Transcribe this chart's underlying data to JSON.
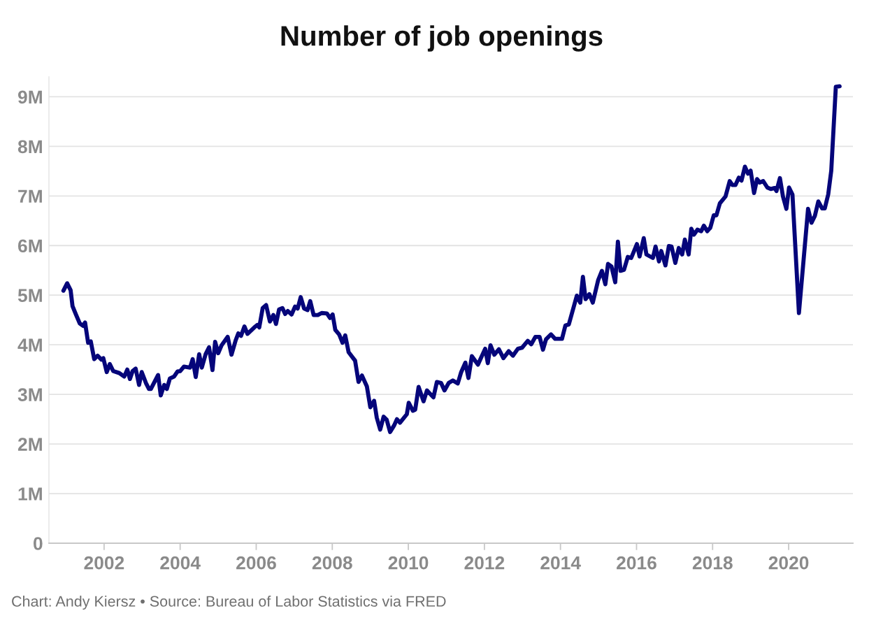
{
  "chart_data": {
    "type": "line",
    "title": "Number of job openings",
    "annotations": [
      "Chart: Andy Kiersz • Source: Bureau of Labor Statistics via FRED"
    ],
    "xlim": [
      2000.55,
      2021.69
    ],
    "xticks": [
      2002,
      2004,
      2006,
      2008,
      2010,
      2012,
      2014,
      2016,
      2018,
      2020
    ],
    "ylim": [
      0,
      9.4
    ],
    "yticks": [
      {
        "value": 0,
        "label": "0"
      },
      {
        "value": 1,
        "label": "1M"
      },
      {
        "value": 2,
        "label": "2M"
      },
      {
        "value": 3,
        "label": "3M"
      },
      {
        "value": 4,
        "label": "4M"
      },
      {
        "value": 5,
        "label": "5M"
      },
      {
        "value": 6,
        "label": "6M"
      },
      {
        "value": 7,
        "label": "7M"
      },
      {
        "value": 8,
        "label": "8M"
      },
      {
        "value": 9,
        "label": "9M"
      }
    ],
    "grid": "y",
    "legend": false,
    "marker": "none",
    "line_style": "solid",
    "series": [
      {
        "color": "#05057a",
        "x": [
          2000.93,
          2001.03,
          2001.12,
          2001.17,
          2001.26,
          2001.36,
          2001.45,
          2001.5,
          2001.58,
          2001.65,
          2001.74,
          2001.83,
          2001.93,
          2001.98,
          2002.07,
          2002.15,
          2002.24,
          2002.4,
          2002.53,
          2002.61,
          2002.68,
          2002.75,
          2002.83,
          2002.92,
          2002.99,
          2003.1,
          2003.18,
          2003.23,
          2003.42,
          2003.49,
          2003.58,
          2003.65,
          2003.73,
          2003.84,
          2003.93,
          2004.0,
          2004.1,
          2004.26,
          2004.33,
          2004.41,
          2004.5,
          2004.57,
          2004.67,
          2004.76,
          2004.85,
          2004.92,
          2005.0,
          2005.09,
          2005.25,
          2005.35,
          2005.46,
          2005.53,
          2005.6,
          2005.69,
          2005.77,
          2005.95,
          2006.03,
          2006.08,
          2006.17,
          2006.26,
          2006.36,
          2006.45,
          2006.52,
          2006.6,
          2006.69,
          2006.76,
          2006.83,
          2006.93,
          2007.02,
          2007.09,
          2007.17,
          2007.26,
          2007.35,
          2007.42,
          2007.51,
          2007.62,
          2007.72,
          2007.86,
          2007.94,
          2008.01,
          2008.08,
          2008.18,
          2008.27,
          2008.34,
          2008.43,
          2008.6,
          2008.69,
          2008.78,
          2008.91,
          2009.0,
          2009.1,
          2009.17,
          2009.26,
          2009.35,
          2009.43,
          2009.52,
          2009.63,
          2009.7,
          2009.78,
          2009.96,
          2010.01,
          2010.12,
          2010.18,
          2010.27,
          2010.4,
          2010.49,
          2010.66,
          2010.75,
          2010.86,
          2010.95,
          2011.06,
          2011.17,
          2011.3,
          2011.39,
          2011.5,
          2011.58,
          2011.67,
          2011.83,
          2012.02,
          2012.09,
          2012.16,
          2012.26,
          2012.38,
          2012.5,
          2012.64,
          2012.75,
          2012.88,
          2012.99,
          2013.14,
          2013.23,
          2013.34,
          2013.45,
          2013.54,
          2013.62,
          2013.75,
          2013.86,
          2014.04,
          2014.13,
          2014.22,
          2014.43,
          2014.52,
          2014.59,
          2014.66,
          2014.76,
          2014.85,
          2014.99,
          2015.09,
          2015.18,
          2015.25,
          2015.34,
          2015.44,
          2015.51,
          2015.58,
          2015.67,
          2015.77,
          2015.86,
          2016.01,
          2016.08,
          2016.19,
          2016.26,
          2016.43,
          2016.5,
          2016.59,
          2016.65,
          2016.76,
          2016.85,
          2016.92,
          2017.02,
          2017.11,
          2017.2,
          2017.27,
          2017.37,
          2017.44,
          2017.51,
          2017.6,
          2017.7,
          2017.77,
          2017.86,
          2017.94,
          2018.03,
          2018.1,
          2018.19,
          2018.34,
          2018.45,
          2018.52,
          2018.6,
          2018.69,
          2018.76,
          2018.85,
          2018.93,
          2019.0,
          2019.09,
          2019.17,
          2019.24,
          2019.33,
          2019.44,
          2019.53,
          2019.63,
          2019.68,
          2019.77,
          2019.85,
          2019.94,
          2020.01,
          2020.1,
          2020.27,
          2020.51,
          2020.6,
          2020.69,
          2020.78,
          2020.88,
          2020.95,
          2021.04,
          2021.12,
          2021.24,
          2021.34
        ],
        "values": [
          5.09,
          5.24,
          5.1,
          4.78,
          4.61,
          4.43,
          4.38,
          4.45,
          4.04,
          4.07,
          3.71,
          3.78,
          3.7,
          3.73,
          3.45,
          3.61,
          3.47,
          3.43,
          3.36,
          3.5,
          3.31,
          3.47,
          3.52,
          3.19,
          3.45,
          3.23,
          3.11,
          3.11,
          3.39,
          2.98,
          3.19,
          3.11,
          3.32,
          3.36,
          3.46,
          3.47,
          3.56,
          3.54,
          3.71,
          3.35,
          3.81,
          3.54,
          3.81,
          3.95,
          3.49,
          4.06,
          3.83,
          3.99,
          4.16,
          3.8,
          4.09,
          4.23,
          4.18,
          4.37,
          4.22,
          4.35,
          4.4,
          4.35,
          4.74,
          4.8,
          4.47,
          4.6,
          4.42,
          4.71,
          4.74,
          4.62,
          4.68,
          4.61,
          4.77,
          4.73,
          4.96,
          4.73,
          4.7,
          4.88,
          4.6,
          4.6,
          4.64,
          4.63,
          4.54,
          4.61,
          4.3,
          4.21,
          4.04,
          4.19,
          3.85,
          3.68,
          3.25,
          3.38,
          3.16,
          2.74,
          2.87,
          2.53,
          2.29,
          2.55,
          2.49,
          2.24,
          2.38,
          2.5,
          2.43,
          2.6,
          2.83,
          2.67,
          2.69,
          3.15,
          2.86,
          3.08,
          2.94,
          3.25,
          3.23,
          3.08,
          3.23,
          3.28,
          3.22,
          3.45,
          3.64,
          3.33,
          3.77,
          3.6,
          3.92,
          3.63,
          3.99,
          3.8,
          3.91,
          3.73,
          3.87,
          3.78,
          3.92,
          3.94,
          4.08,
          4.01,
          4.16,
          4.16,
          3.9,
          4.11,
          4.21,
          4.12,
          4.12,
          4.39,
          4.41,
          4.99,
          4.85,
          5.37,
          4.92,
          5.02,
          4.85,
          5.3,
          5.49,
          5.22,
          5.63,
          5.58,
          5.26,
          6.08,
          5.49,
          5.51,
          5.77,
          5.75,
          6.03,
          5.78,
          6.15,
          5.82,
          5.75,
          5.98,
          5.68,
          5.89,
          5.6,
          5.99,
          5.98,
          5.65,
          5.95,
          5.82,
          6.12,
          5.82,
          6.34,
          6.22,
          6.32,
          6.29,
          6.4,
          6.29,
          6.36,
          6.61,
          6.61,
          6.85,
          6.99,
          7.3,
          7.22,
          7.22,
          7.37,
          7.31,
          7.59,
          7.45,
          7.51,
          7.06,
          7.34,
          7.27,
          7.3,
          7.17,
          7.14,
          7.16,
          7.1,
          7.36,
          6.99,
          6.74,
          7.17,
          7.03,
          4.64,
          6.74,
          6.46,
          6.6,
          6.89,
          6.75,
          6.75,
          7.03,
          7.51,
          9.2,
          9.21
        ]
      }
    ]
  }
}
